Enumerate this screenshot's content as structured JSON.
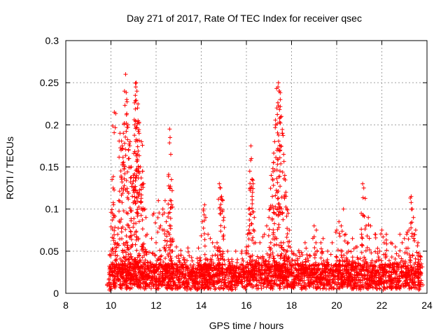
{
  "chart_data": {
    "type": "scatter",
    "title": "Day 271 of 2017, Rate Of TEC Index for receiver qsec",
    "xlabel": "GPS time / hours",
    "ylabel": "ROTI / TECUs",
    "xlim": [
      8,
      24
    ],
    "ylim": [
      0,
      0.3
    ],
    "x_ticks": [
      8,
      10,
      12,
      14,
      16,
      18,
      20,
      22,
      24
    ],
    "x_tick_labels": [
      "8",
      "10",
      "12",
      "14",
      "16",
      "18",
      "20",
      "22",
      "24"
    ],
    "y_ticks": [
      0,
      0.05,
      0.1,
      0.15,
      0.2,
      0.25,
      0.3
    ],
    "y_tick_labels": [
      "0",
      "0.05",
      "0.1",
      "0.15",
      "0.2",
      "0.25",
      "0.3"
    ],
    "grid": true,
    "marker": "+",
    "color": "#ff0000",
    "series": [
      {
        "name": "ROTI",
        "points": [
          [
            9.9,
            0.012
          ],
          [
            9.95,
            0.03
          ],
          [
            10.0,
            0.045
          ],
          [
            10.05,
            0.135
          ],
          [
            10.1,
            0.125
          ],
          [
            10.12,
            0.09
          ],
          [
            10.15,
            0.215
          ],
          [
            10.2,
            0.06
          ],
          [
            10.3,
            0.07
          ],
          [
            10.35,
            0.11
          ],
          [
            10.4,
            0.19
          ],
          [
            10.45,
            0.17
          ],
          [
            10.5,
            0.175
          ],
          [
            10.55,
            0.19
          ],
          [
            10.6,
            0.24
          ],
          [
            10.65,
            0.26
          ],
          [
            10.7,
            0.23
          ],
          [
            10.75,
            0.2
          ],
          [
            10.8,
            0.16
          ],
          [
            10.85,
            0.18
          ],
          [
            10.9,
            0.15
          ],
          [
            10.95,
            0.13
          ],
          [
            11.0,
            0.14
          ],
          [
            11.05,
            0.2
          ],
          [
            11.08,
            0.235
          ],
          [
            11.1,
            0.245
          ],
          [
            11.12,
            0.25
          ],
          [
            11.15,
            0.24
          ],
          [
            11.18,
            0.22
          ],
          [
            11.2,
            0.205
          ],
          [
            11.25,
            0.19
          ],
          [
            11.3,
            0.15
          ],
          [
            11.35,
            0.18
          ],
          [
            11.4,
            0.145
          ],
          [
            11.45,
            0.13
          ],
          [
            11.5,
            0.1
          ],
          [
            11.55,
            0.09
          ],
          [
            11.6,
            0.07
          ],
          [
            11.8,
            0.065
          ],
          [
            11.9,
            0.095
          ],
          [
            12.0,
            0.06
          ],
          [
            12.1,
            0.11
          ],
          [
            12.2,
            0.08
          ],
          [
            12.3,
            0.1
          ],
          [
            12.35,
            0.075
          ],
          [
            12.4,
            0.11
          ],
          [
            12.45,
            0.085
          ],
          [
            12.55,
            0.095
          ],
          [
            12.6,
            0.195
          ],
          [
            12.62,
            0.185
          ],
          [
            12.65,
            0.165
          ],
          [
            12.68,
            0.135
          ],
          [
            12.7,
            0.05
          ],
          [
            12.9,
            0.055
          ],
          [
            13.0,
            0.045
          ],
          [
            13.2,
            0.03
          ],
          [
            13.4,
            0.025
          ],
          [
            13.6,
            0.03
          ],
          [
            13.8,
            0.02
          ],
          [
            14.0,
            0.03
          ],
          [
            14.05,
            0.085
          ],
          [
            14.1,
            0.1
          ],
          [
            14.15,
            0.105
          ],
          [
            14.2,
            0.09
          ],
          [
            14.3,
            0.07
          ],
          [
            14.4,
            0.065
          ],
          [
            14.5,
            0.06
          ],
          [
            14.6,
            0.055
          ],
          [
            14.7,
            0.06
          ],
          [
            14.8,
            0.13
          ],
          [
            14.85,
            0.125
          ],
          [
            14.9,
            0.115
          ],
          [
            14.95,
            0.11
          ],
          [
            15.0,
            0.09
          ],
          [
            15.2,
            0.04
          ],
          [
            15.4,
            0.03
          ],
          [
            15.6,
            0.04
          ],
          [
            15.8,
            0.05
          ],
          [
            16.0,
            0.055
          ],
          [
            16.05,
            0.07
          ],
          [
            16.1,
            0.1
          ],
          [
            16.15,
            0.145
          ],
          [
            16.2,
            0.175
          ],
          [
            16.22,
            0.16
          ],
          [
            16.25,
            0.135
          ],
          [
            16.3,
            0.13
          ],
          [
            16.35,
            0.09
          ],
          [
            16.4,
            0.06
          ],
          [
            16.6,
            0.06
          ],
          [
            16.8,
            0.07
          ],
          [
            16.9,
            0.08
          ],
          [
            17.0,
            0.09
          ],
          [
            17.05,
            0.1
          ],
          [
            17.1,
            0.14
          ],
          [
            17.15,
            0.115
          ],
          [
            17.2,
            0.155
          ],
          [
            17.25,
            0.18
          ],
          [
            17.3,
            0.2
          ],
          [
            17.35,
            0.22
          ],
          [
            17.4,
            0.245
          ],
          [
            17.42,
            0.25
          ],
          [
            17.45,
            0.24
          ],
          [
            17.5,
            0.23
          ],
          [
            17.55,
            0.21
          ],
          [
            17.6,
            0.19
          ],
          [
            17.65,
            0.165
          ],
          [
            17.7,
            0.14
          ],
          [
            17.75,
            0.12
          ],
          [
            17.8,
            0.1
          ],
          [
            17.85,
            0.095
          ],
          [
            17.9,
            0.075
          ],
          [
            18.0,
            0.05
          ],
          [
            18.2,
            0.045
          ],
          [
            18.4,
            0.035
          ],
          [
            18.6,
            0.06
          ],
          [
            18.8,
            0.045
          ],
          [
            19.0,
            0.08
          ],
          [
            19.1,
            0.075
          ],
          [
            19.3,
            0.06
          ],
          [
            19.4,
            0.065
          ],
          [
            19.6,
            0.05
          ],
          [
            19.8,
            0.06
          ],
          [
            20.0,
            0.075
          ],
          [
            20.1,
            0.085
          ],
          [
            20.2,
            0.08
          ],
          [
            20.3,
            0.1
          ],
          [
            20.4,
            0.07
          ],
          [
            20.5,
            0.06
          ],
          [
            20.7,
            0.065
          ],
          [
            20.9,
            0.055
          ],
          [
            21.1,
            0.07
          ],
          [
            21.15,
            0.13
          ],
          [
            21.2,
            0.125
          ],
          [
            21.3,
            0.08
          ],
          [
            21.4,
            0.09
          ],
          [
            21.5,
            0.08
          ],
          [
            21.7,
            0.07
          ],
          [
            21.9,
            0.05
          ],
          [
            22.0,
            0.075
          ],
          [
            22.1,
            0.06
          ],
          [
            22.2,
            0.07
          ],
          [
            22.4,
            0.06
          ],
          [
            22.6,
            0.055
          ],
          [
            22.8,
            0.07
          ],
          [
            22.9,
            0.06
          ],
          [
            23.0,
            0.065
          ],
          [
            23.1,
            0.07
          ],
          [
            23.2,
            0.075
          ],
          [
            23.3,
            0.115
          ],
          [
            23.35,
            0.1
          ],
          [
            23.4,
            0.09
          ],
          [
            23.5,
            0.075
          ],
          [
            23.6,
            0.06
          ],
          [
            23.7,
            0.04
          ],
          [
            23.75,
            0.035
          ]
        ]
      }
    ],
    "dense_band": {
      "x_range": [
        9.9,
        23.75
      ],
      "baseline_range": [
        0.005,
        0.035
      ],
      "description_for_render": "many low-level points fill the band below ~0.04 across the whole time range"
    }
  }
}
